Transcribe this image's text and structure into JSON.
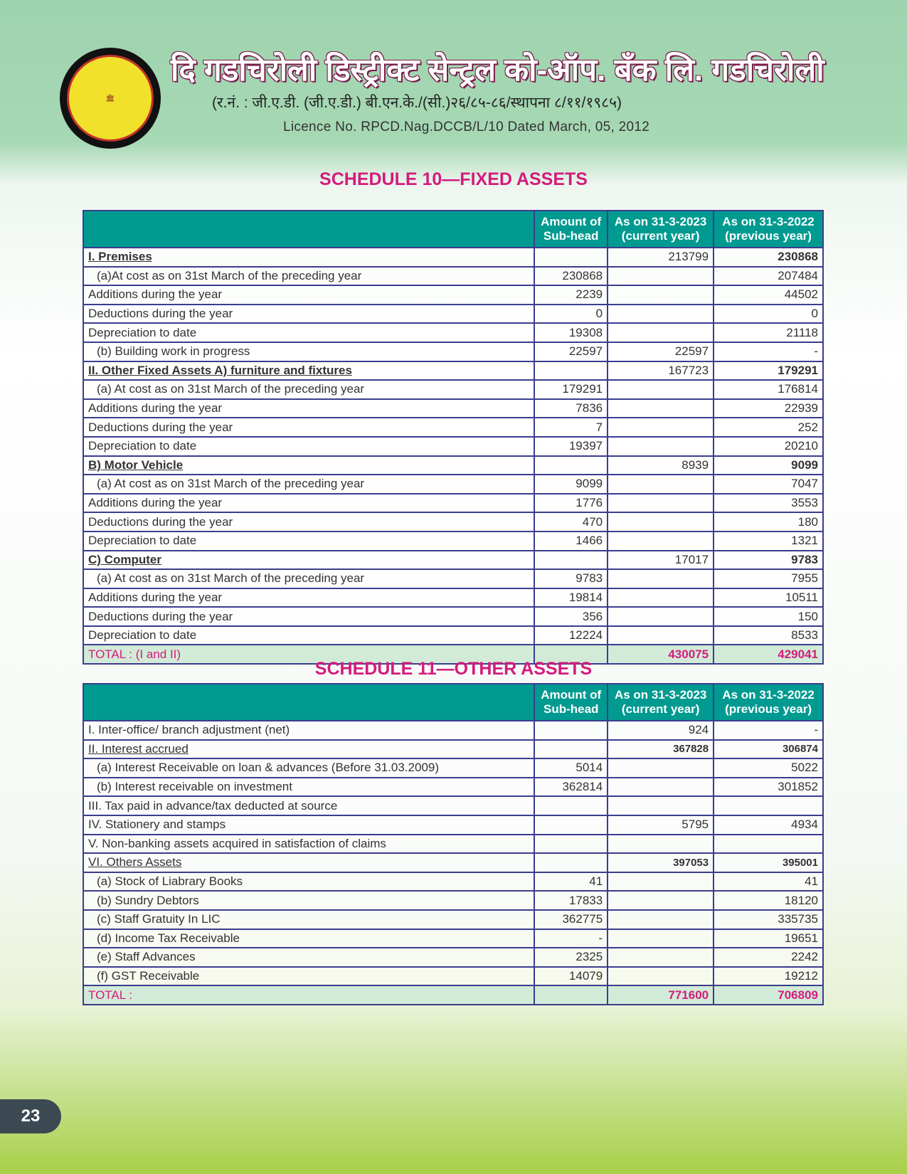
{
  "header": {
    "logo_text": "दि गडचिरोली डिस्ट्रीक्ट सेन्ट्रल को-ऑप. बँक लि.",
    "title": "दि गडचिरोली डिस्ट्रीक्ट सेन्ट्रल को-ऑप. बँक लि. गडचिरोली",
    "registration": "(र.नं. : जी.ए.डी. (जी.ए.डी.) बी.एन.के./(सी.)२६/८५-८६/स्थापना ८/११/१९८५)",
    "licence": "Licence No. RPCD.Nag.DCCB/L/10 Dated March, 05, 2012"
  },
  "columns": {
    "sub": [
      "Amount of",
      "Sub-head"
    ],
    "cur": [
      "As on 31-3-2023",
      "(current year)"
    ],
    "prev": [
      "As on 31-3-2022",
      "(previous year)"
    ]
  },
  "schedule10": {
    "title": "SCHEDULE 10—FIXED ASSETS",
    "rows": [
      [
        "I. Premises",
        "",
        "213799",
        "230868",
        "head"
      ],
      [
        "(a)At cost as on 31st March of the preceding year",
        "230868",
        "",
        "207484",
        "ind"
      ],
      [
        "Additions during the year",
        "2239",
        "",
        "44502",
        ""
      ],
      [
        "Deductions during the year",
        "0",
        "",
        "0",
        ""
      ],
      [
        "Depreciation to date",
        "19308",
        "",
        "21118",
        ""
      ],
      [
        "(b) Building work in progress",
        "22597",
        "22597",
        "-",
        "ind"
      ],
      [
        "II. Other Fixed Assets  A) furniture and fixtures",
        "",
        "167723",
        "179291",
        "head"
      ],
      [
        "(a) At cost as on 31st March of the preceding year",
        "179291",
        "",
        "176814",
        "ind"
      ],
      [
        "Additions during the year",
        "7836",
        "",
        "22939",
        ""
      ],
      [
        "Deductions during the year",
        "7",
        "",
        "252",
        ""
      ],
      [
        "Depreciation to date",
        "19397",
        "",
        "20210",
        ""
      ],
      [
        "B) Motor Vehicle",
        "",
        "8939",
        "9099",
        "head"
      ],
      [
        "(a) At cost as on 31st March of the preceding year",
        "9099",
        "",
        "7047",
        "ind"
      ],
      [
        "Additions during the year",
        "1776",
        "",
        "3553",
        ""
      ],
      [
        "Deductions during the year",
        "470",
        "",
        "180",
        ""
      ],
      [
        "Depreciation to date",
        "1466",
        "",
        "1321",
        ""
      ],
      [
        "C) Computer",
        "",
        "17017",
        "9783",
        "head"
      ],
      [
        "(a) At cost as on 31st March of the preceding year",
        "9783",
        "",
        "7955",
        "ind"
      ],
      [
        "Additions during the year",
        "19814",
        "",
        "10511",
        ""
      ],
      [
        "Deductions during the year",
        "356",
        "",
        "150",
        ""
      ],
      [
        "Depreciation to date",
        "12224",
        "",
        "8533",
        ""
      ],
      [
        "TOTAL : (I and II)",
        "",
        "430075",
        "429041",
        "total"
      ]
    ]
  },
  "schedule11": {
    "title": "SCHEDULE 11—OTHER ASSETS",
    "rows": [
      [
        "I. Inter-office/ branch adjustment (net)",
        "",
        "924",
        "-",
        ""
      ],
      [
        "II. Interest accrued",
        "",
        "367828",
        "306874",
        "sub"
      ],
      [
        "(a) Interest Receivable on loan & advances (Before 31.03.2009)",
        "5014",
        "",
        "5022",
        "ind"
      ],
      [
        "(b) Interest receivable on investment",
        "362814",
        "",
        "301852",
        "ind"
      ],
      [
        "III. Tax paid in advance/tax deducted at source",
        "",
        "",
        "",
        ""
      ],
      [
        "IV. Stationery and stamps",
        "",
        "5795",
        "4934",
        ""
      ],
      [
        "V. Non-banking assets acquired in satisfaction of claims",
        "",
        "",
        "",
        ""
      ],
      [
        "VI. Others Assets",
        "",
        "397053",
        "395001",
        "sub"
      ],
      [
        "(a) Stock of Liabrary Books",
        "41",
        "",
        "41",
        "ind"
      ],
      [
        "(b) Sundry Debtors",
        "17833",
        "",
        "18120",
        "ind"
      ],
      [
        "(c) Staff Gratuity In LIC",
        "362775",
        "",
        "335735",
        "ind"
      ],
      [
        "(d) Income Tax Receivable",
        "-",
        "",
        "19651",
        "ind"
      ],
      [
        "(e) Staff Advances",
        "2325",
        "",
        "2242",
        "ind"
      ],
      [
        "(f) GST Receivable",
        "14079",
        "",
        "19212",
        "ind"
      ],
      [
        "TOTAL :",
        "",
        "771600",
        "706809",
        "total"
      ]
    ]
  },
  "page_number": "23"
}
